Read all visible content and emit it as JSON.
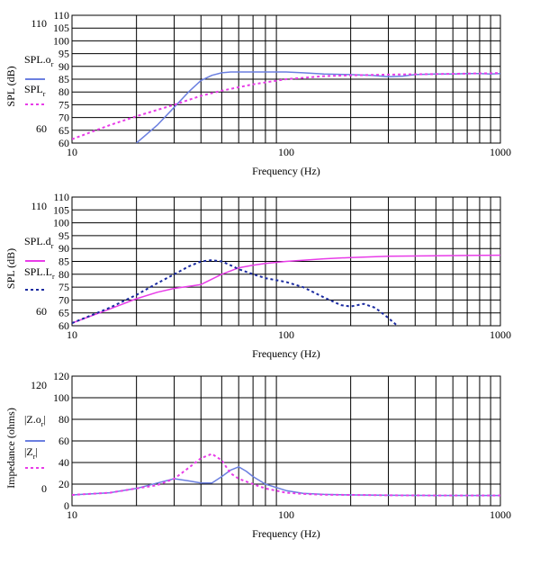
{
  "chart_data": [
    {
      "type": "line",
      "xscale": "log",
      "xlim": [
        10,
        1000
      ],
      "ylim": [
        60,
        110
      ],
      "x_ticks": [
        "10",
        "100",
        "1000"
      ],
      "y_ticks": [
        "60",
        "65",
        "70",
        "75",
        "80",
        "85",
        "90",
        "95",
        "100",
        "105",
        "110"
      ],
      "xlabel": "Frequency (Hz)",
      "ylabel": "SPL (dB)",
      "y_side_labels": [
        "110",
        "60"
      ],
      "grid": true,
      "series": [
        {
          "name": "SPL.o",
          "name_sub": "r",
          "color": "#6b7fe0",
          "style": "solid",
          "x": [
            20,
            25,
            30,
            35,
            40,
            45,
            50,
            55,
            60,
            70,
            80,
            100,
            120,
            150,
            200,
            250,
            300,
            350,
            400,
            500,
            600,
            700,
            800,
            900,
            1000
          ],
          "y": [
            60,
            67,
            74,
            80,
            84.5,
            86.5,
            87.5,
            87.8,
            87.8,
            87.8,
            87.8,
            87.8,
            87.5,
            87,
            86.8,
            86.5,
            86,
            86.2,
            86.8,
            87,
            87,
            87.2,
            87.2,
            87,
            87.2
          ]
        },
        {
          "name": "SPL",
          "name_sub": "r",
          "color": "#e83ce8",
          "style": "dotted",
          "x": [
            10,
            15,
            20,
            30,
            40,
            50,
            70,
            100,
            150,
            200,
            300,
            500,
            700,
            1000
          ],
          "y": [
            61.5,
            67,
            70.5,
            75,
            78.5,
            80.5,
            83,
            85,
            86.2,
            86.5,
            86.8,
            87,
            87.2,
            87.4
          ]
        }
      ]
    },
    {
      "type": "line",
      "xscale": "log",
      "xlim": [
        10,
        1000
      ],
      "ylim": [
        60,
        110
      ],
      "x_ticks": [
        "10",
        "100",
        "1000"
      ],
      "y_ticks": [
        "60",
        "65",
        "70",
        "75",
        "80",
        "85",
        "90",
        "95",
        "100",
        "105",
        "110"
      ],
      "xlabel": "Frequency (Hz)",
      "ylabel": "SPL (dB)",
      "y_side_labels": [
        "110",
        "60"
      ],
      "grid": true,
      "series": [
        {
          "name": "SPL.d",
          "name_sub": "r",
          "color": "#e83ce8",
          "style": "solid",
          "x": [
            10,
            15,
            20,
            25,
            30,
            35,
            40,
            50,
            60,
            70,
            80,
            100,
            150,
            200,
            300,
            500,
            700,
            1000
          ],
          "y": [
            61,
            66.5,
            70.5,
            73,
            74.5,
            75.3,
            76,
            80,
            82.5,
            83.5,
            84.2,
            85,
            86,
            86.5,
            87,
            87.2,
            87.3,
            87.4
          ]
        },
        {
          "name": "SPL.L",
          "name_sub": "r",
          "color": "#1a2aa0",
          "style": "dotted",
          "x": [
            10,
            15,
            20,
            25,
            30,
            35,
            40,
            45,
            50,
            55,
            60,
            70,
            80,
            100,
            120,
            150,
            180,
            200,
            230,
            260,
            300,
            330
          ],
          "y": [
            61,
            67,
            72,
            76.5,
            80,
            83,
            85,
            85.5,
            85,
            83.5,
            82,
            80,
            78.5,
            77,
            75,
            71,
            68,
            67.5,
            68.5,
            67,
            63,
            60
          ]
        }
      ]
    },
    {
      "type": "line",
      "xscale": "log",
      "xlim": [
        10,
        1000
      ],
      "ylim": [
        0,
        120
      ],
      "x_ticks": [
        "10",
        "100",
        "1000"
      ],
      "y_ticks": [
        "0",
        "20",
        "40",
        "60",
        "80",
        "100",
        "120"
      ],
      "xlabel": "Frequency (Hz)",
      "ylabel": "Impedance (ohms)",
      "y_side_labels": [
        "120",
        "0"
      ],
      "grid": true,
      "series": [
        {
          "name": "|Z.o",
          "name_sub": "r",
          "name_end": "|",
          "color": "#6b7fe0",
          "style": "solid",
          "x": [
            10,
            15,
            20,
            25,
            30,
            35,
            40,
            45,
            50,
            55,
            60,
            65,
            70,
            80,
            100,
            120,
            150,
            200,
            300,
            500,
            700,
            1000
          ],
          "y": [
            10,
            12,
            16,
            21,
            25,
            23,
            21,
            21,
            27,
            33,
            36,
            32,
            27,
            20,
            14,
            11.5,
            10.5,
            10,
            9.7,
            9.5,
            9.5,
            9.5
          ]
        },
        {
          "name": "|Z",
          "name_sub": "r",
          "name_end": "|",
          "color": "#e83ce8",
          "style": "dotted",
          "x": [
            10,
            15,
            20,
            25,
            30,
            35,
            40,
            45,
            50,
            55,
            60,
            70,
            80,
            100,
            120,
            150,
            200,
            300,
            500,
            700,
            1000
          ],
          "y": [
            10,
            12,
            16,
            19,
            25,
            35,
            44,
            48,
            42,
            30,
            25,
            20,
            16,
            12,
            11,
            10.2,
            10,
            9.7,
            9.5,
            9.5,
            9.5
          ]
        }
      ]
    }
  ]
}
